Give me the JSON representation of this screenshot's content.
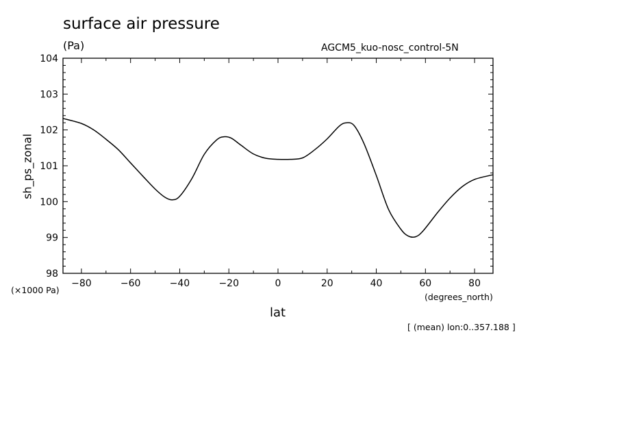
{
  "chart_data": {
    "type": "line",
    "title": "surface air pressure",
    "units": "(Pa)",
    "run_name": "AGCM5_kuo-nosc_control-5N",
    "ylabel": "sh_ps_zonal",
    "xlabel": "lat",
    "y_scale_note": "(×1000 Pa)",
    "x_units": "(degrees_north)",
    "footnote": "[ (mean) lon:0..357.188 ]",
    "xlim": [
      -87.5,
      87.5
    ],
    "ylim": [
      98,
      104
    ],
    "x_ticks": [
      -80,
      -60,
      -40,
      -20,
      0,
      20,
      40,
      60,
      80
    ],
    "y_ticks": [
      98,
      99,
      100,
      101,
      102,
      103,
      104
    ],
    "grid": false,
    "series": [
      {
        "x": [
          -87.5,
          -80,
          -75,
          -70,
          -65,
          -60,
          -55,
          -50,
          -46,
          -43,
          -40,
          -35,
          -30,
          -25,
          -22,
          -19,
          -15,
          -10,
          -5,
          0,
          5,
          10,
          15,
          20,
          25,
          28,
          31,
          35,
          40,
          45,
          50,
          53,
          56,
          59,
          65,
          70,
          75,
          80,
          87.5
        ],
        "y": [
          102.32,
          102.18,
          102.0,
          101.74,
          101.45,
          101.08,
          100.71,
          100.35,
          100.12,
          100.05,
          100.15,
          100.65,
          101.32,
          101.72,
          101.81,
          101.77,
          101.57,
          101.33,
          101.21,
          101.18,
          101.18,
          101.22,
          101.45,
          101.75,
          102.11,
          102.2,
          102.12,
          101.62,
          100.73,
          99.78,
          99.23,
          99.04,
          99.02,
          99.18,
          99.7,
          100.1,
          100.42,
          100.62,
          100.75
        ]
      }
    ]
  }
}
